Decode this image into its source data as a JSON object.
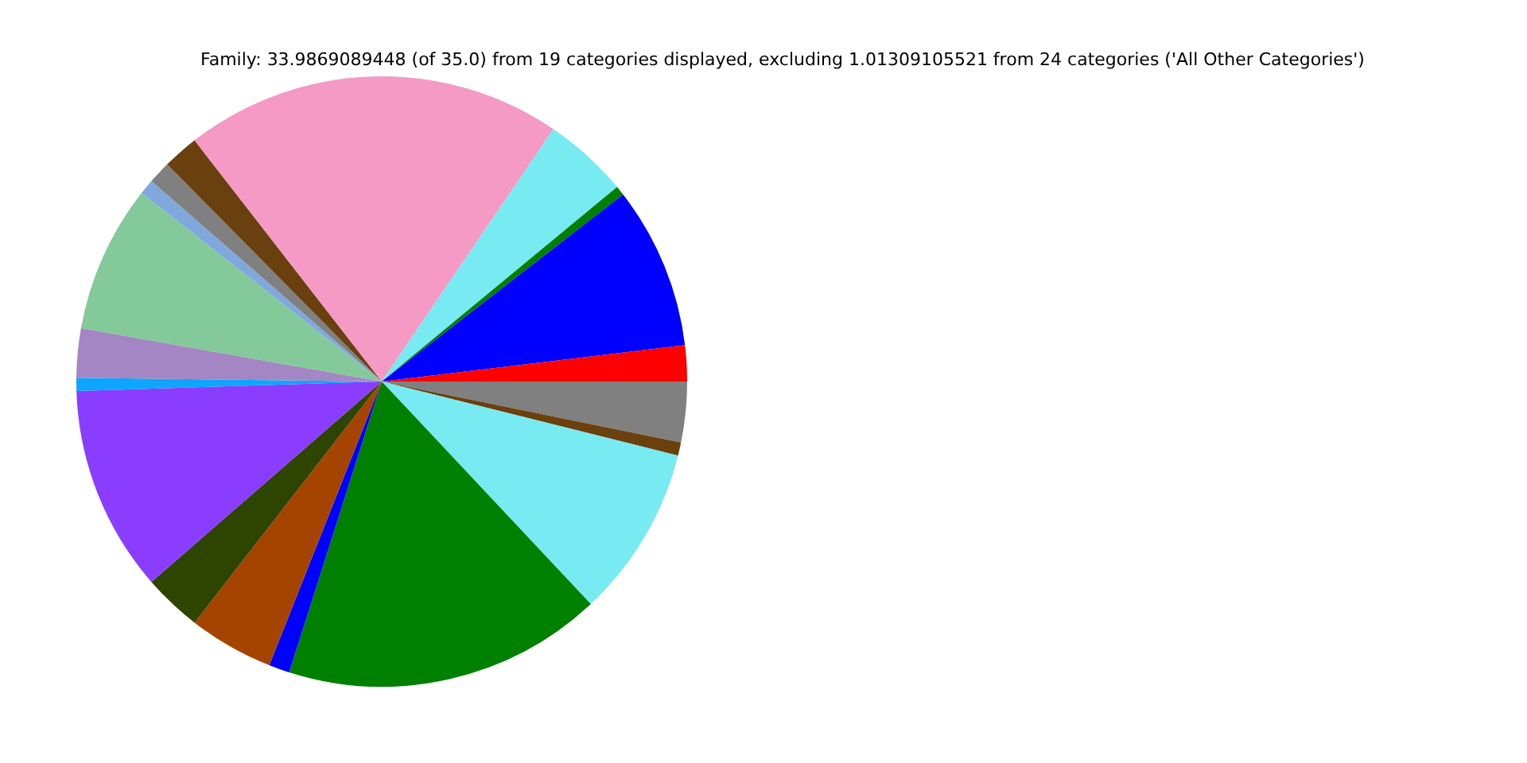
{
  "chart_data": {
    "type": "pie",
    "title": "Family: 33.9869089448 (of 35.0) from 19 categories displayed, excluding 1.01309105521 from 24 categories ('All Other Categories')",
    "categories": [
      null,
      null,
      null,
      null,
      null,
      null,
      null,
      null,
      null,
      null,
      null,
      null,
      null,
      null,
      null,
      null,
      null,
      null,
      null
    ],
    "values": [
      3.2,
      0.7,
      9.1,
      16.9,
      1.1,
      4.5,
      3.1,
      10.9,
      0.7,
      2.6,
      7.8,
      0.8,
      1.2,
      1.9,
      20.0,
      4.5,
      0.5,
      8.6,
      1.9
    ],
    "colors": [
      "#808080",
      "#6b400f",
      "#78eaf2",
      "#008000",
      "#0000ff",
      "#a54300",
      "#2d4500",
      "#8b3dff",
      "#0ea5ff",
      "#a486c4",
      "#83c99a",
      "#80a8dc",
      "#808080",
      "#6b400f",
      "#f49ac5",
      "#78eaf2",
      "#008000",
      "#0000ff",
      "#ff0000"
    ],
    "legend": false
  }
}
